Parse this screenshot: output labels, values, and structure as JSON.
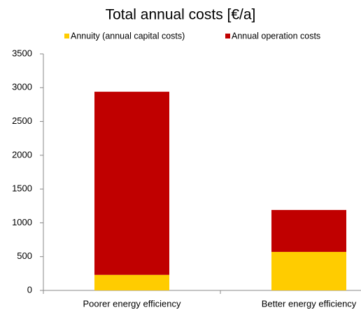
{
  "chart_data": {
    "type": "stacked_bar",
    "title": "Total annual costs [€/a]",
    "categories": [
      "Poorer energy efficiency",
      "Better energy efficiency"
    ],
    "series": [
      {
        "name": "Annuity (annual capital costs)",
        "color": "#ffcc00",
        "values": [
          230,
          570
        ]
      },
      {
        "name": "Annual operation costs",
        "color": "#c00000",
        "values": [
          2710,
          620
        ]
      }
    ],
    "ylim": [
      0,
      3500
    ],
    "yticks": [
      0,
      500,
      1000,
      1500,
      2000,
      2500,
      3000,
      3500
    ],
    "grid": false,
    "legend": "top"
  }
}
